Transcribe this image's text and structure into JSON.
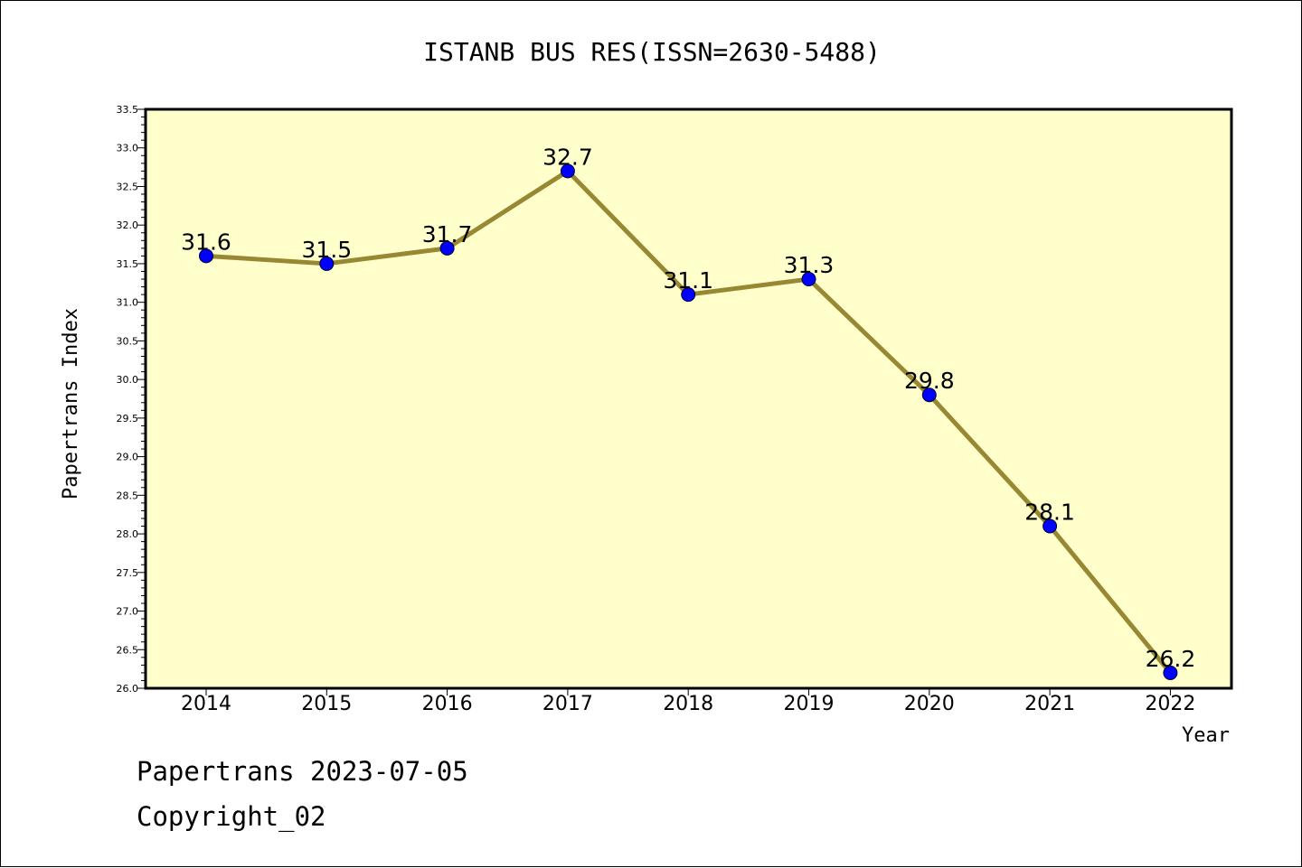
{
  "chart_data": {
    "type": "line",
    "title": "ISTANB BUS RES(ISSN=2630-5488)",
    "xlabel": "Year",
    "ylabel": "Papertrans Index",
    "categories": [
      "2014",
      "2015",
      "2016",
      "2017",
      "2018",
      "2019",
      "2020",
      "2021",
      "2022"
    ],
    "series": [
      {
        "values": [
          31.6,
          31.5,
          31.7,
          32.7,
          31.1,
          31.3,
          29.8,
          28.1,
          26.2
        ]
      }
    ],
    "data_labels": [
      "31.6",
      "31.5",
      "31.7",
      "32.7",
      "31.1",
      "31.3",
      "29.8",
      "28.1",
      "26.2"
    ],
    "ylim": [
      26.0,
      33.5
    ],
    "ytick_labels": [
      "26.0",
      "26.5",
      "27.0",
      "27.5",
      "28.0",
      "28.5",
      "29.0",
      "29.5",
      "30.0",
      "30.5",
      "31.0",
      "31.5",
      "32.0",
      "32.5",
      "33.0",
      "33.5"
    ],
    "grid": false,
    "colors": {
      "plot_background": "#ffffcc",
      "line": "#998833",
      "marker": "#0000ff"
    }
  },
  "footer": {
    "line1": "Papertrans 2023-07-05",
    "line2": "Copyright_02"
  }
}
